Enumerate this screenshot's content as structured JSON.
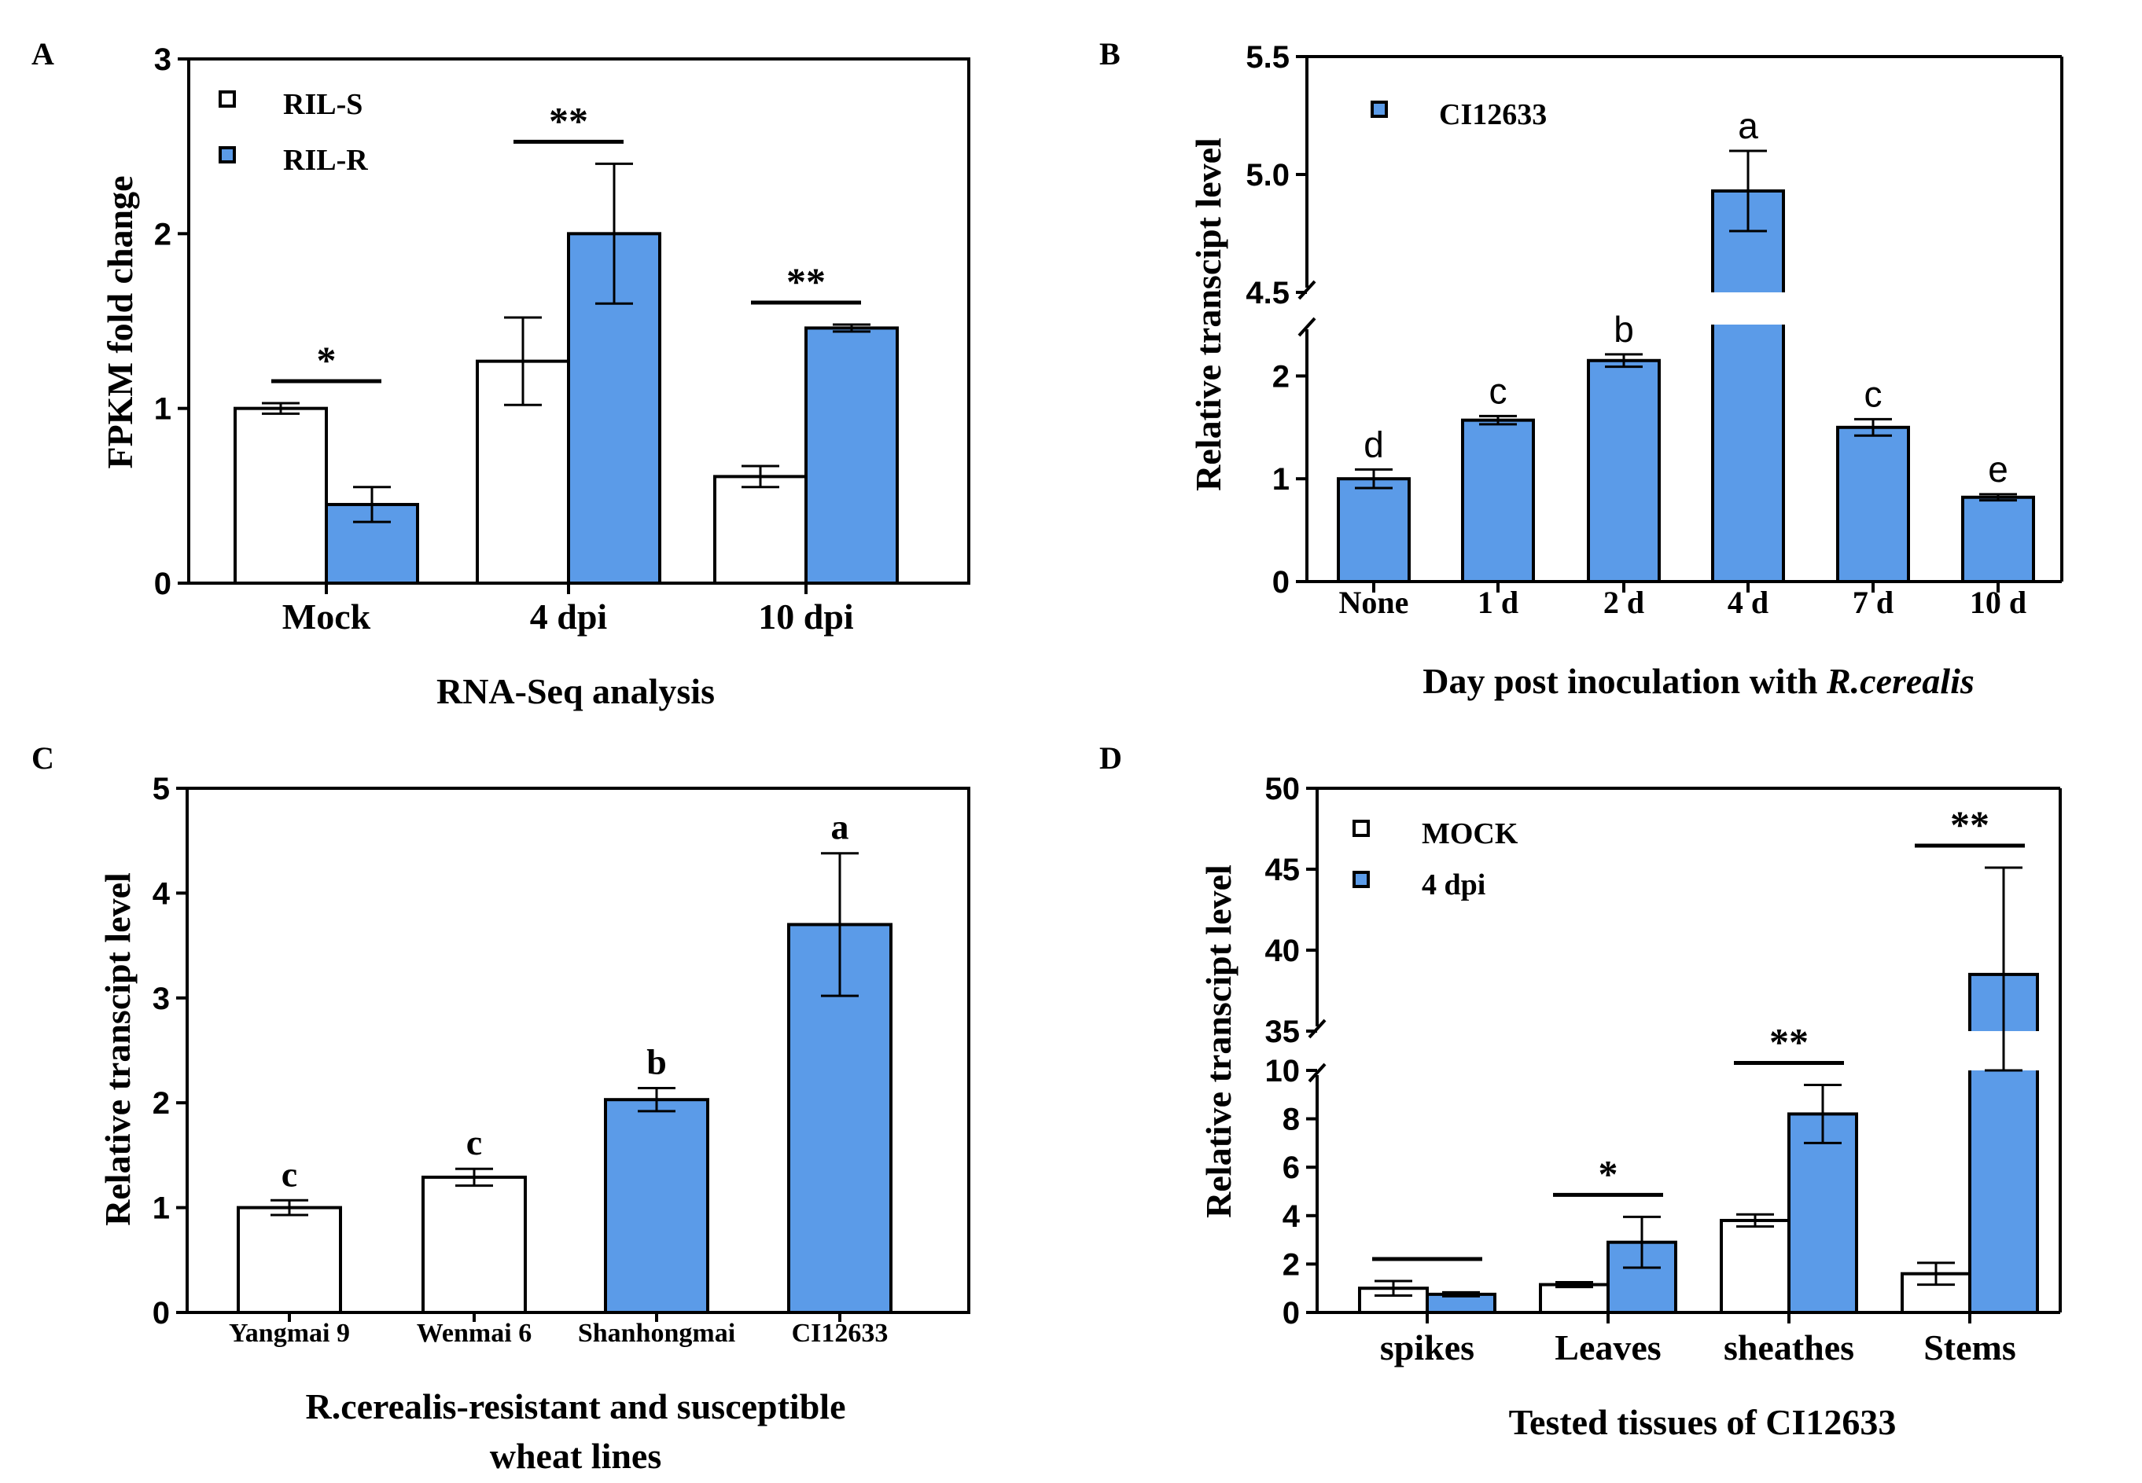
{
  "colors": {
    "white_bar": "#ffffff",
    "blue_bar": "#5B9BE8",
    "ink": "#000000"
  },
  "chart_data": [
    {
      "panel": "A",
      "type": "bar",
      "title": "",
      "xlabel": "RNA-Seq analysis",
      "ylabel": "FPKM fold change",
      "ylim": [
        0,
        3
      ],
      "yticks": [
        "0",
        "1",
        "2",
        "3"
      ],
      "categories": [
        "Mock",
        "4 dpi",
        "10 dpi"
      ],
      "series": [
        {
          "name": "RIL-S",
          "color": "white",
          "values": [
            1.0,
            1.27,
            0.61
          ],
          "errors": [
            0.03,
            0.25,
            0.06
          ]
        },
        {
          "name": "RIL-R",
          "color": "blue",
          "values": [
            0.45,
            2.0,
            1.46
          ],
          "errors": [
            0.1,
            0.4,
            0.02
          ]
        }
      ],
      "significance": [
        "*",
        "**",
        "**"
      ],
      "legend_position": "top-left"
    },
    {
      "panel": "B",
      "type": "bar",
      "title": "",
      "xlabel_prefix": "Day post inoculation with ",
      "xlabel_italic": "R.cerealis",
      "ylabel": "Relative transcipt level",
      "broken_axis": {
        "lower": [
          0,
          2.5
        ],
        "upper": [
          4.5,
          5.5
        ]
      },
      "yticks_lower": [
        "0",
        "1",
        "2"
      ],
      "yticks_upper": [
        "4.5",
        "5.0",
        "5.5"
      ],
      "categories": [
        "None",
        "1 d",
        "2 d",
        "4 d",
        "7 d",
        "10 d"
      ],
      "series": [
        {
          "name": "CI12633",
          "color": "blue",
          "values": [
            1.0,
            1.57,
            2.15,
            4.93,
            1.5,
            0.82
          ],
          "errors": [
            0.09,
            0.04,
            0.06,
            0.17,
            0.08,
            0.03
          ]
        }
      ],
      "letters": [
        "d",
        "c",
        "b",
        "a",
        "c",
        "e"
      ],
      "legend_position": "top-left"
    },
    {
      "panel": "C",
      "type": "bar",
      "title": "",
      "xlabel_lines": [
        "R.cerealis-resistant and susceptible",
        "wheat lines"
      ],
      "ylabel": "Relative transcipt level",
      "ylim": [
        0,
        5
      ],
      "yticks": [
        "0",
        "1",
        "2",
        "3",
        "4",
        "5"
      ],
      "categories": [
        "Yangmai 9",
        "Wenmai 6",
        "Shanhongmai",
        "CI12633"
      ],
      "bar_colors": [
        "white",
        "white",
        "blue",
        "blue"
      ],
      "values": [
        1.0,
        1.29,
        2.03,
        3.7
      ],
      "errors": [
        0.07,
        0.08,
        0.11,
        0.68
      ],
      "letters": [
        "c",
        "c",
        "b",
        "a"
      ]
    },
    {
      "panel": "D",
      "type": "bar",
      "title": "",
      "xlabel": "Tested tissues of CI12633",
      "ylabel": "Relative transcipt level",
      "broken_axis": {
        "lower": [
          0,
          10
        ],
        "upper": [
          35,
          50
        ]
      },
      "yticks_lower": [
        "0",
        "2",
        "4",
        "6",
        "8",
        "10"
      ],
      "yticks_upper": [
        "35",
        "40",
        "45",
        "50"
      ],
      "categories": [
        "spikes",
        "Leaves",
        "sheathes",
        "Stems"
      ],
      "series": [
        {
          "name": "MOCK",
          "color": "white",
          "values": [
            1.0,
            1.15,
            3.8,
            1.6
          ],
          "errors": [
            0.3,
            0.1,
            0.25,
            0.45
          ]
        },
        {
          "name": "4 dpi",
          "color": "blue",
          "values": [
            0.75,
            2.9,
            8.2,
            38.5
          ],
          "errors": [
            0.08,
            1.05,
            1.2,
            6.6
          ]
        }
      ],
      "significance": [
        "",
        "*",
        "**",
        "**"
      ],
      "legend_position": "top-left"
    }
  ]
}
